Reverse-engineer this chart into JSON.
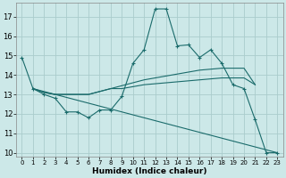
{
  "xlabel": "Humidex (Indice chaleur)",
  "bg_color": "#cce8e8",
  "grid_color": "#aacccc",
  "line_color": "#1a6b6b",
  "xlim": [
    -0.5,
    23.5
  ],
  "ylim": [
    9.8,
    17.7
  ],
  "yticks": [
    10,
    11,
    12,
    13,
    14,
    15,
    16,
    17
  ],
  "xticks": [
    0,
    1,
    2,
    3,
    4,
    5,
    6,
    7,
    8,
    9,
    10,
    11,
    12,
    13,
    14,
    15,
    16,
    17,
    18,
    19,
    20,
    21,
    22,
    23
  ],
  "line1_x": [
    0,
    1,
    2,
    3,
    4,
    5,
    6,
    7,
    8,
    9,
    10,
    11,
    12,
    13,
    14,
    15,
    16,
    17,
    18,
    19,
    20,
    21,
    22,
    23
  ],
  "line1_y": [
    14.9,
    13.3,
    13.0,
    12.8,
    12.1,
    12.1,
    11.8,
    12.2,
    12.2,
    12.9,
    14.6,
    15.3,
    17.4,
    17.4,
    15.5,
    15.55,
    14.9,
    15.3,
    14.6,
    13.5,
    13.3,
    11.7,
    10.0,
    10.0
  ],
  "line2_x": [
    1,
    2,
    3,
    4,
    5,
    6,
    7,
    8,
    9,
    10,
    11,
    12,
    13,
    14,
    15,
    16,
    17,
    18,
    19,
    20,
    21
  ],
  "line2_y": [
    13.3,
    13.1,
    13.0,
    13.0,
    13.0,
    13.0,
    13.15,
    13.3,
    13.45,
    13.6,
    13.75,
    13.85,
    13.95,
    14.05,
    14.15,
    14.25,
    14.3,
    14.35,
    14.35,
    14.35,
    13.5
  ],
  "line3_x": [
    1,
    2,
    3,
    4,
    5,
    6,
    7,
    8,
    9,
    10,
    11,
    12,
    13,
    14,
    15,
    16,
    17,
    18,
    19,
    20,
    21
  ],
  "line3_y": [
    13.3,
    13.1,
    13.0,
    13.0,
    13.0,
    13.0,
    13.15,
    13.3,
    13.3,
    13.4,
    13.5,
    13.55,
    13.6,
    13.65,
    13.7,
    13.75,
    13.8,
    13.85,
    13.85,
    13.85,
    13.5
  ],
  "line4_x": [
    1,
    23
  ],
  "line4_y": [
    13.3,
    10.0
  ]
}
